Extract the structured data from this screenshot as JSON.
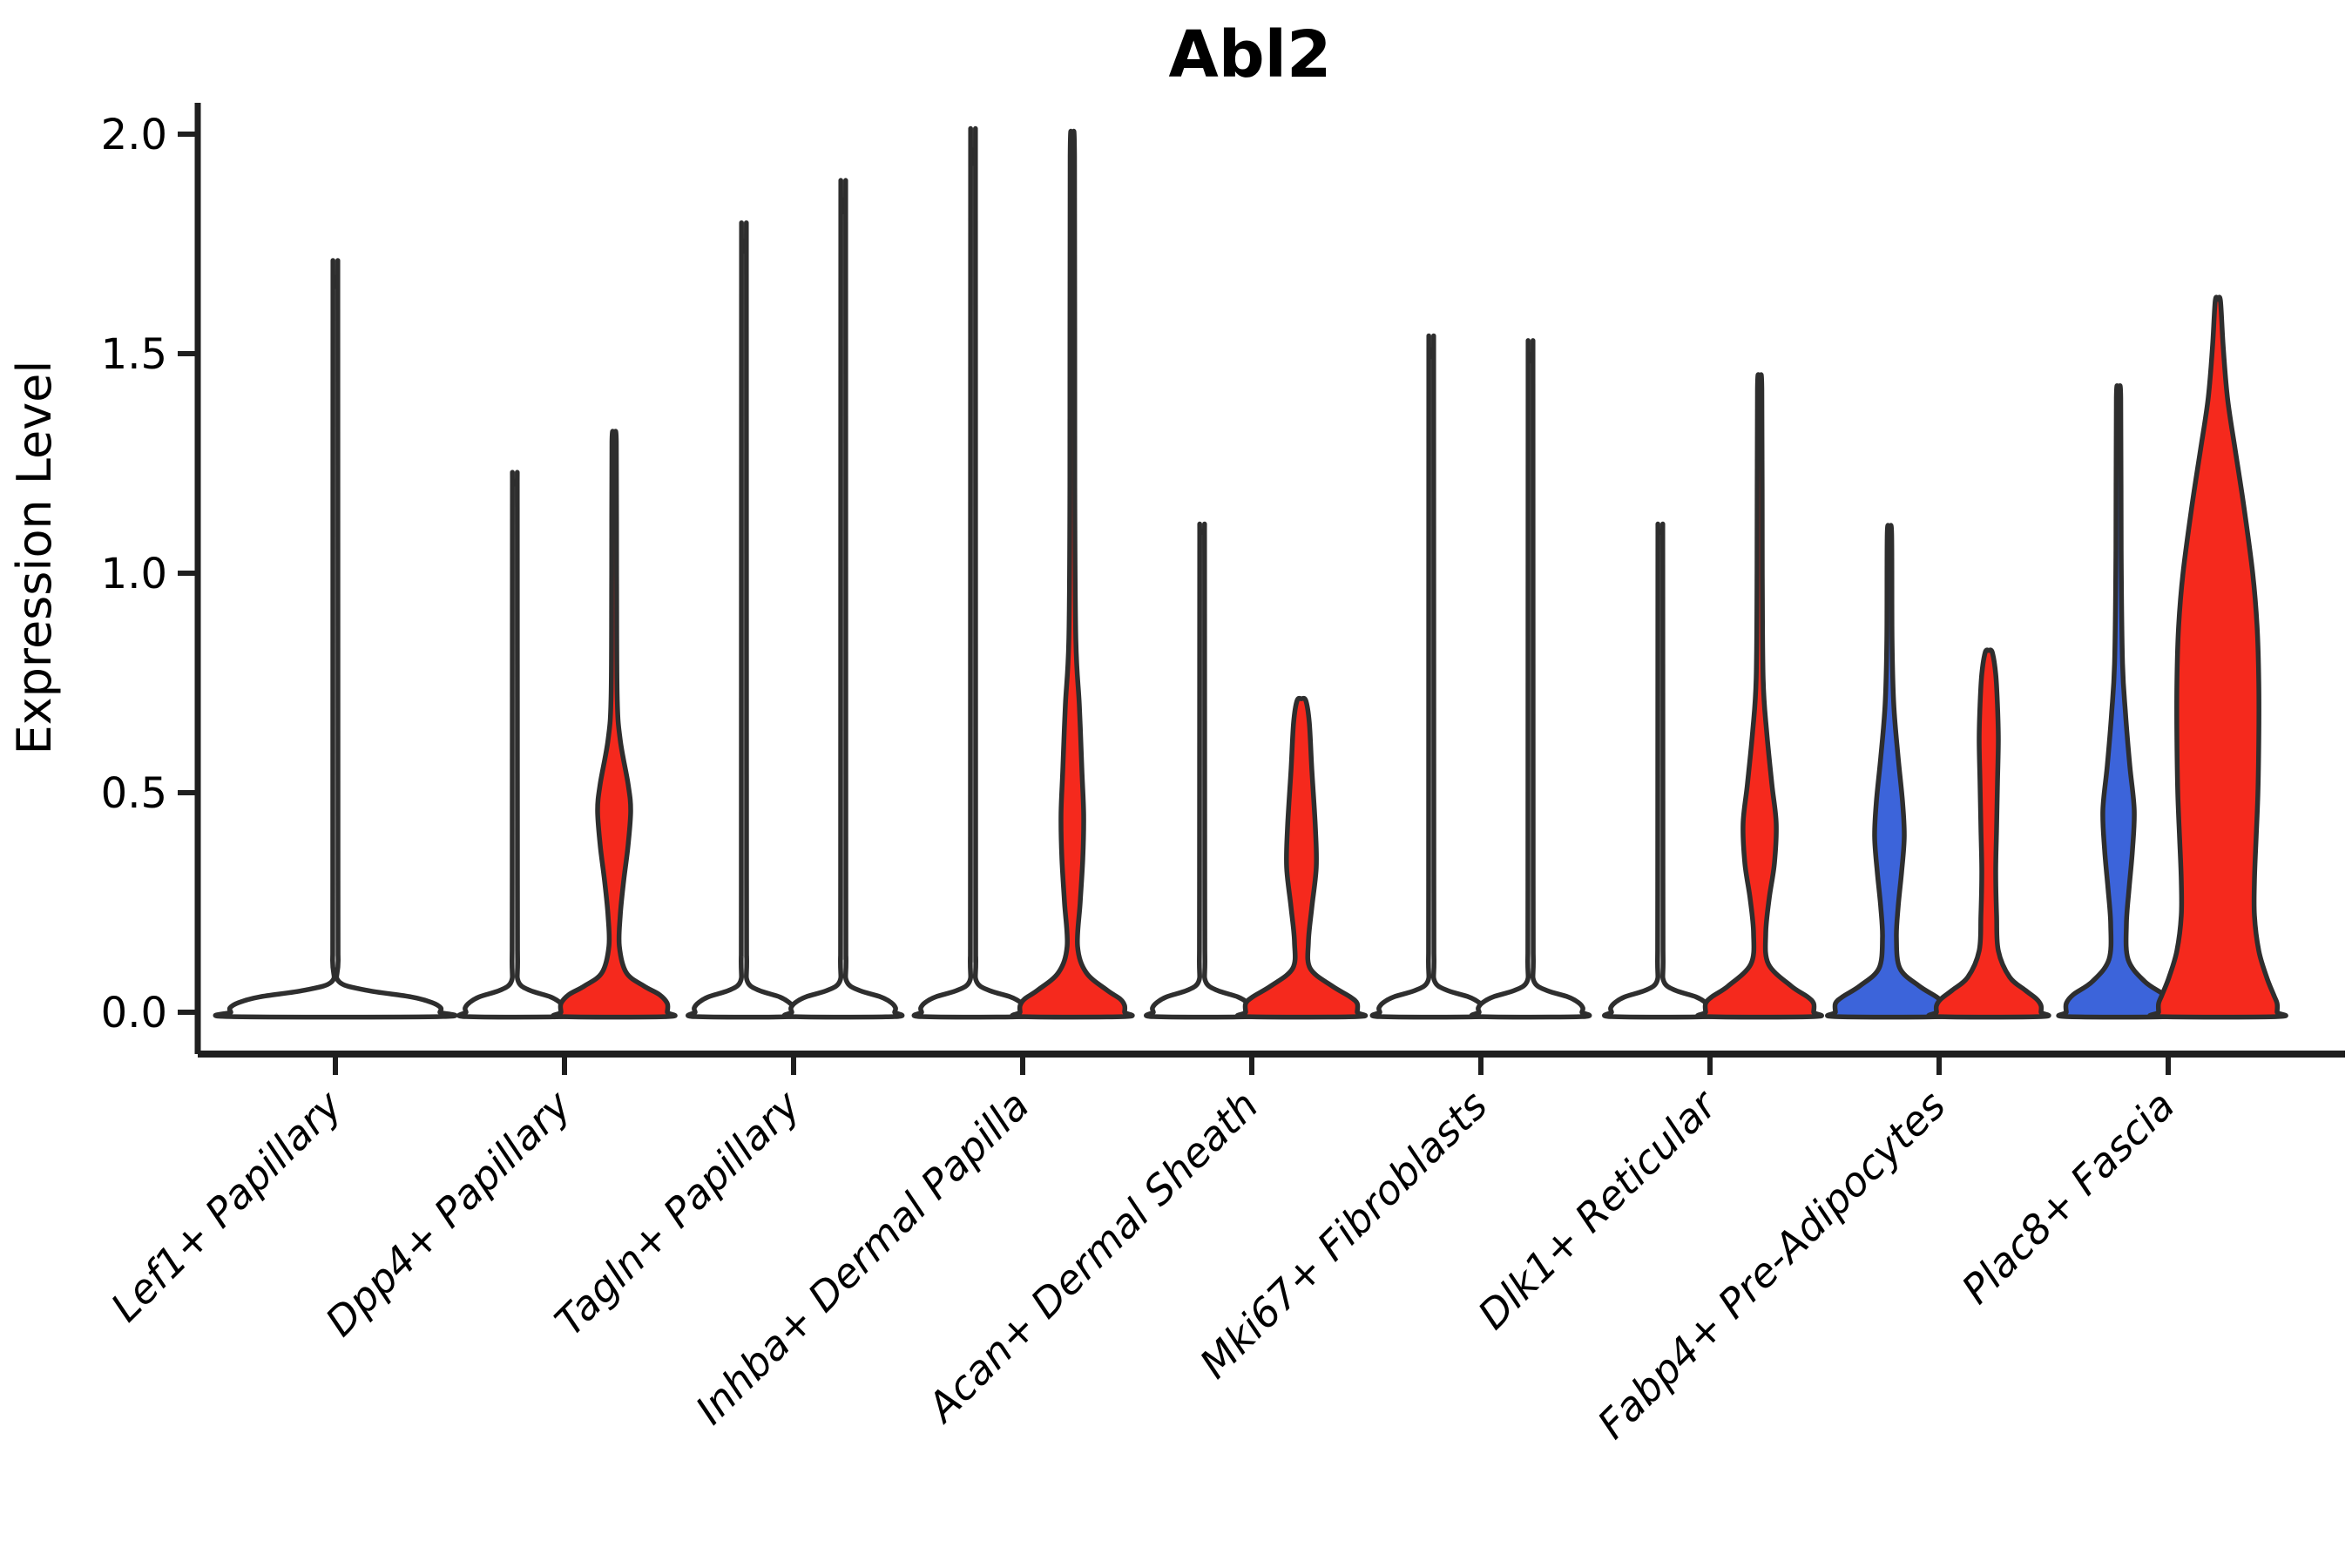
{
  "title": "Abl2",
  "y_axis": {
    "label": "Expression Level",
    "ticks": [
      "2.0",
      "1.5",
      "1.0",
      "0.5",
      "0.0"
    ],
    "tick_values": [
      2.0,
      1.5,
      1.0,
      0.5,
      0.0
    ]
  },
  "chart_data": {
    "type": "violin",
    "title": "Abl2",
    "ylabel": "Expression Level",
    "xlabel": "",
    "ylim": [
      0,
      2.05
    ],
    "grid": false,
    "legend": "none",
    "categories": [
      "Lef1+ Papillary",
      "Dpp4+ Papillary",
      "Tagln+ Papillary",
      "Inhba+ Dermal Papilla",
      "Acan+ Dermal Sheath",
      "Mki67+ Fibroblasts",
      "Dlk1+ Reticular",
      "Fabp4+ Pre-Adipocytes",
      "Plac8+ Fascia"
    ],
    "colors": {
      "blue": "#3c64da",
      "red": "#f5291d",
      "white": "#ffffff",
      "outline": "#2e2e2e"
    },
    "violins": [
      {
        "category": "Lef1+ Papillary",
        "slot": "single",
        "fill": "white",
        "max_expression": 1.65,
        "profile": [
          [
            1.65,
            2.5
          ],
          [
            1.6,
            2.8
          ],
          [
            0.3,
            3.0
          ],
          [
            0.12,
            3.2
          ],
          [
            0.07,
            4
          ],
          [
            0.05,
            36
          ],
          [
            0.035,
            87
          ],
          [
            0.022,
            111
          ],
          [
            0.01,
            121
          ],
          [
            0.0,
            120
          ]
        ]
      },
      {
        "category": "Dpp4+ Papillary",
        "slot": "left",
        "fill": "white",
        "max_expression": 1.2,
        "profile": [
          [
            1.2,
            2.5
          ],
          [
            1.15,
            2.8
          ],
          [
            0.3,
            3.0
          ],
          [
            0.12,
            3.2
          ],
          [
            0.07,
            4
          ],
          [
            0.05,
            17
          ],
          [
            0.035,
            41
          ],
          [
            0.022,
            52
          ],
          [
            0.01,
            57
          ],
          [
            0.0,
            56
          ]
        ]
      },
      {
        "category": "Dpp4+ Papillary",
        "slot": "right",
        "fill": "red",
        "max_expression": 1.3,
        "profile": [
          [
            1.3,
            2.5
          ],
          [
            1.0,
            2.8
          ],
          [
            0.72,
            3.5
          ],
          [
            0.62,
            7
          ],
          [
            0.52,
            16
          ],
          [
            0.46,
            19
          ],
          [
            0.38,
            16
          ],
          [
            0.3,
            11
          ],
          [
            0.22,
            7
          ],
          [
            0.15,
            6
          ],
          [
            0.09,
            14
          ],
          [
            0.06,
            34
          ],
          [
            0.04,
            52
          ],
          [
            0.02,
            61
          ],
          [
            0.0,
            61
          ]
        ]
      },
      {
        "category": "Tagln+ Papillary",
        "slot": "left",
        "fill": "white",
        "max_expression": 1.73,
        "profile": [
          [
            1.73,
            2.5
          ],
          [
            1.68,
            2.8
          ],
          [
            0.3,
            3.0
          ],
          [
            0.12,
            3.2
          ],
          [
            0.07,
            4
          ],
          [
            0.05,
            17
          ],
          [
            0.035,
            41
          ],
          [
            0.022,
            52
          ],
          [
            0.01,
            57
          ],
          [
            0.0,
            56
          ]
        ]
      },
      {
        "category": "Tagln+ Papillary",
        "slot": "right",
        "fill": "white",
        "max_expression": 1.82,
        "profile": [
          [
            1.82,
            2.5
          ],
          [
            1.77,
            2.8
          ],
          [
            0.3,
            3.0
          ],
          [
            0.12,
            3.2
          ],
          [
            0.07,
            4
          ],
          [
            0.05,
            18
          ],
          [
            0.035,
            43
          ],
          [
            0.022,
            55
          ],
          [
            0.01,
            60
          ],
          [
            0.0,
            59
          ]
        ]
      },
      {
        "category": "Inhba+ Dermal Papilla",
        "slot": "left",
        "fill": "white",
        "max_expression": 1.93,
        "profile": [
          [
            1.93,
            2.5
          ],
          [
            1.88,
            2.8
          ],
          [
            0.3,
            3.0
          ],
          [
            0.12,
            3.2
          ],
          [
            0.07,
            4
          ],
          [
            0.05,
            18
          ],
          [
            0.035,
            43
          ],
          [
            0.022,
            55
          ],
          [
            0.01,
            60
          ],
          [
            0.0,
            59
          ]
        ]
      },
      {
        "category": "Inhba+ Dermal Papilla",
        "slot": "right",
        "fill": "red",
        "max_expression": 1.95,
        "profile": [
          [
            1.95,
            2.5
          ],
          [
            1.2,
            2.8
          ],
          [
            0.85,
            4
          ],
          [
            0.7,
            8
          ],
          [
            0.55,
            11
          ],
          [
            0.45,
            13
          ],
          [
            0.35,
            12
          ],
          [
            0.25,
            9
          ],
          [
            0.15,
            6
          ],
          [
            0.09,
            16
          ],
          [
            0.05,
            40
          ],
          [
            0.03,
            55
          ],
          [
            0.015,
            60
          ],
          [
            0.0,
            60
          ]
        ]
      },
      {
        "category": "Acan+ Dermal Sheath",
        "slot": "left",
        "fill": "white",
        "max_expression": 1.09,
        "profile": [
          [
            1.09,
            2.5
          ],
          [
            1.04,
            2.8
          ],
          [
            0.3,
            3.0
          ],
          [
            0.12,
            3.2
          ],
          [
            0.07,
            4
          ],
          [
            0.05,
            17
          ],
          [
            0.035,
            41
          ],
          [
            0.022,
            52
          ],
          [
            0.01,
            57
          ],
          [
            0.0,
            56
          ]
        ]
      },
      {
        "category": "Acan+ Dermal Sheath",
        "slot": "right",
        "fill": "red",
        "max_expression": 0.71,
        "profile": [
          [
            0.71,
            5
          ],
          [
            0.66,
            9
          ],
          [
            0.55,
            12
          ],
          [
            0.42,
            16
          ],
          [
            0.33,
            17
          ],
          [
            0.24,
            12
          ],
          [
            0.16,
            8
          ],
          [
            0.1,
            10
          ],
          [
            0.06,
            35
          ],
          [
            0.035,
            56
          ],
          [
            0.02,
            64
          ],
          [
            0.0,
            64
          ]
        ]
      },
      {
        "category": "Mki67+ Fibroblasts",
        "slot": "left",
        "fill": "white",
        "max_expression": 1.49,
        "profile": [
          [
            1.49,
            2.5
          ],
          [
            1.44,
            2.8
          ],
          [
            0.3,
            3.0
          ],
          [
            0.12,
            3.2
          ],
          [
            0.07,
            4
          ],
          [
            0.05,
            18
          ],
          [
            0.035,
            43
          ],
          [
            0.022,
            55
          ],
          [
            0.01,
            60
          ],
          [
            0.0,
            59
          ]
        ]
      },
      {
        "category": "Mki67+ Fibroblasts",
        "slot": "right",
        "fill": "white",
        "max_expression": 1.48,
        "profile": [
          [
            1.48,
            2.5
          ],
          [
            1.43,
            2.8
          ],
          [
            0.3,
            3.0
          ],
          [
            0.12,
            3.2
          ],
          [
            0.07,
            4
          ],
          [
            0.05,
            18
          ],
          [
            0.035,
            43
          ],
          [
            0.022,
            55
          ],
          [
            0.01,
            60
          ],
          [
            0.0,
            59
          ]
        ]
      },
      {
        "category": "Dlk1+ Reticular",
        "slot": "left",
        "fill": "white",
        "max_expression": 1.09,
        "profile": [
          [
            1.09,
            2.5
          ],
          [
            1.04,
            2.8
          ],
          [
            0.3,
            3.0
          ],
          [
            0.12,
            3.2
          ],
          [
            0.07,
            4
          ],
          [
            0.05,
            17
          ],
          [
            0.035,
            41
          ],
          [
            0.022,
            52
          ],
          [
            0.01,
            57
          ],
          [
            0.0,
            56
          ]
        ]
      },
      {
        "category": "Dlk1+ Reticular",
        "slot": "right",
        "fill": "red",
        "max_expression": 1.42,
        "profile": [
          [
            1.42,
            2.5
          ],
          [
            1.0,
            3
          ],
          [
            0.76,
            4
          ],
          [
            0.64,
            8
          ],
          [
            0.52,
            14
          ],
          [
            0.43,
            19
          ],
          [
            0.34,
            17
          ],
          [
            0.26,
            11
          ],
          [
            0.18,
            7
          ],
          [
            0.11,
            10
          ],
          [
            0.06,
            36
          ],
          [
            0.035,
            55
          ],
          [
            0.02,
            62
          ],
          [
            0.0,
            62
          ]
        ]
      },
      {
        "category": "Fabp4+ Pre-Adipocytes",
        "slot": "left",
        "fill": "blue",
        "max_expression": 1.09,
        "profile": [
          [
            1.09,
            2.5
          ],
          [
            0.85,
            3
          ],
          [
            0.7,
            5
          ],
          [
            0.58,
            10
          ],
          [
            0.48,
            15
          ],
          [
            0.4,
            17
          ],
          [
            0.32,
            14
          ],
          [
            0.24,
            10
          ],
          [
            0.17,
            8
          ],
          [
            0.1,
            12
          ],
          [
            0.06,
            34
          ],
          [
            0.035,
            54
          ],
          [
            0.02,
            62
          ],
          [
            0.0,
            62
          ]
        ]
      },
      {
        "category": "Fabp4+ Pre-Adipocytes",
        "slot": "right",
        "fill": "red",
        "max_expression": 0.82,
        "profile": [
          [
            0.82,
            4
          ],
          [
            0.77,
            8
          ],
          [
            0.7,
            10
          ],
          [
            0.62,
            11
          ],
          [
            0.52,
            10
          ],
          [
            0.42,
            9
          ],
          [
            0.32,
            8
          ],
          [
            0.22,
            9
          ],
          [
            0.14,
            11
          ],
          [
            0.08,
            24
          ],
          [
            0.05,
            42
          ],
          [
            0.03,
            55
          ],
          [
            0.015,
            60
          ],
          [
            0.0,
            60
          ]
        ]
      },
      {
        "category": "Plac8+ Fascia",
        "slot": "left",
        "fill": "blue",
        "max_expression": 1.4,
        "profile": [
          [
            1.4,
            2.5
          ],
          [
            1.05,
            3
          ],
          [
            0.8,
            4.5
          ],
          [
            0.68,
            8
          ],
          [
            0.56,
            13
          ],
          [
            0.46,
            18
          ],
          [
            0.37,
            16
          ],
          [
            0.28,
            12
          ],
          [
            0.2,
            9
          ],
          [
            0.12,
            11
          ],
          [
            0.07,
            30
          ],
          [
            0.04,
            52
          ],
          [
            0.02,
            60
          ],
          [
            0.0,
            60
          ]
        ]
      },
      {
        "category": "Plac8+ Fascia",
        "slot": "right",
        "fill": "red",
        "max_expression": 1.62,
        "profile": [
          [
            1.62,
            3
          ],
          [
            1.52,
            6
          ],
          [
            1.4,
            11
          ],
          [
            1.28,
            20
          ],
          [
            1.15,
            30
          ],
          [
            1.0,
            40
          ],
          [
            0.88,
            45
          ],
          [
            0.75,
            47
          ],
          [
            0.62,
            47
          ],
          [
            0.5,
            46
          ],
          [
            0.4,
            44
          ],
          [
            0.3,
            42
          ],
          [
            0.22,
            42
          ],
          [
            0.14,
            47
          ],
          [
            0.08,
            56
          ],
          [
            0.04,
            64
          ],
          [
            0.02,
            68
          ],
          [
            0.0,
            68
          ]
        ]
      }
    ]
  }
}
